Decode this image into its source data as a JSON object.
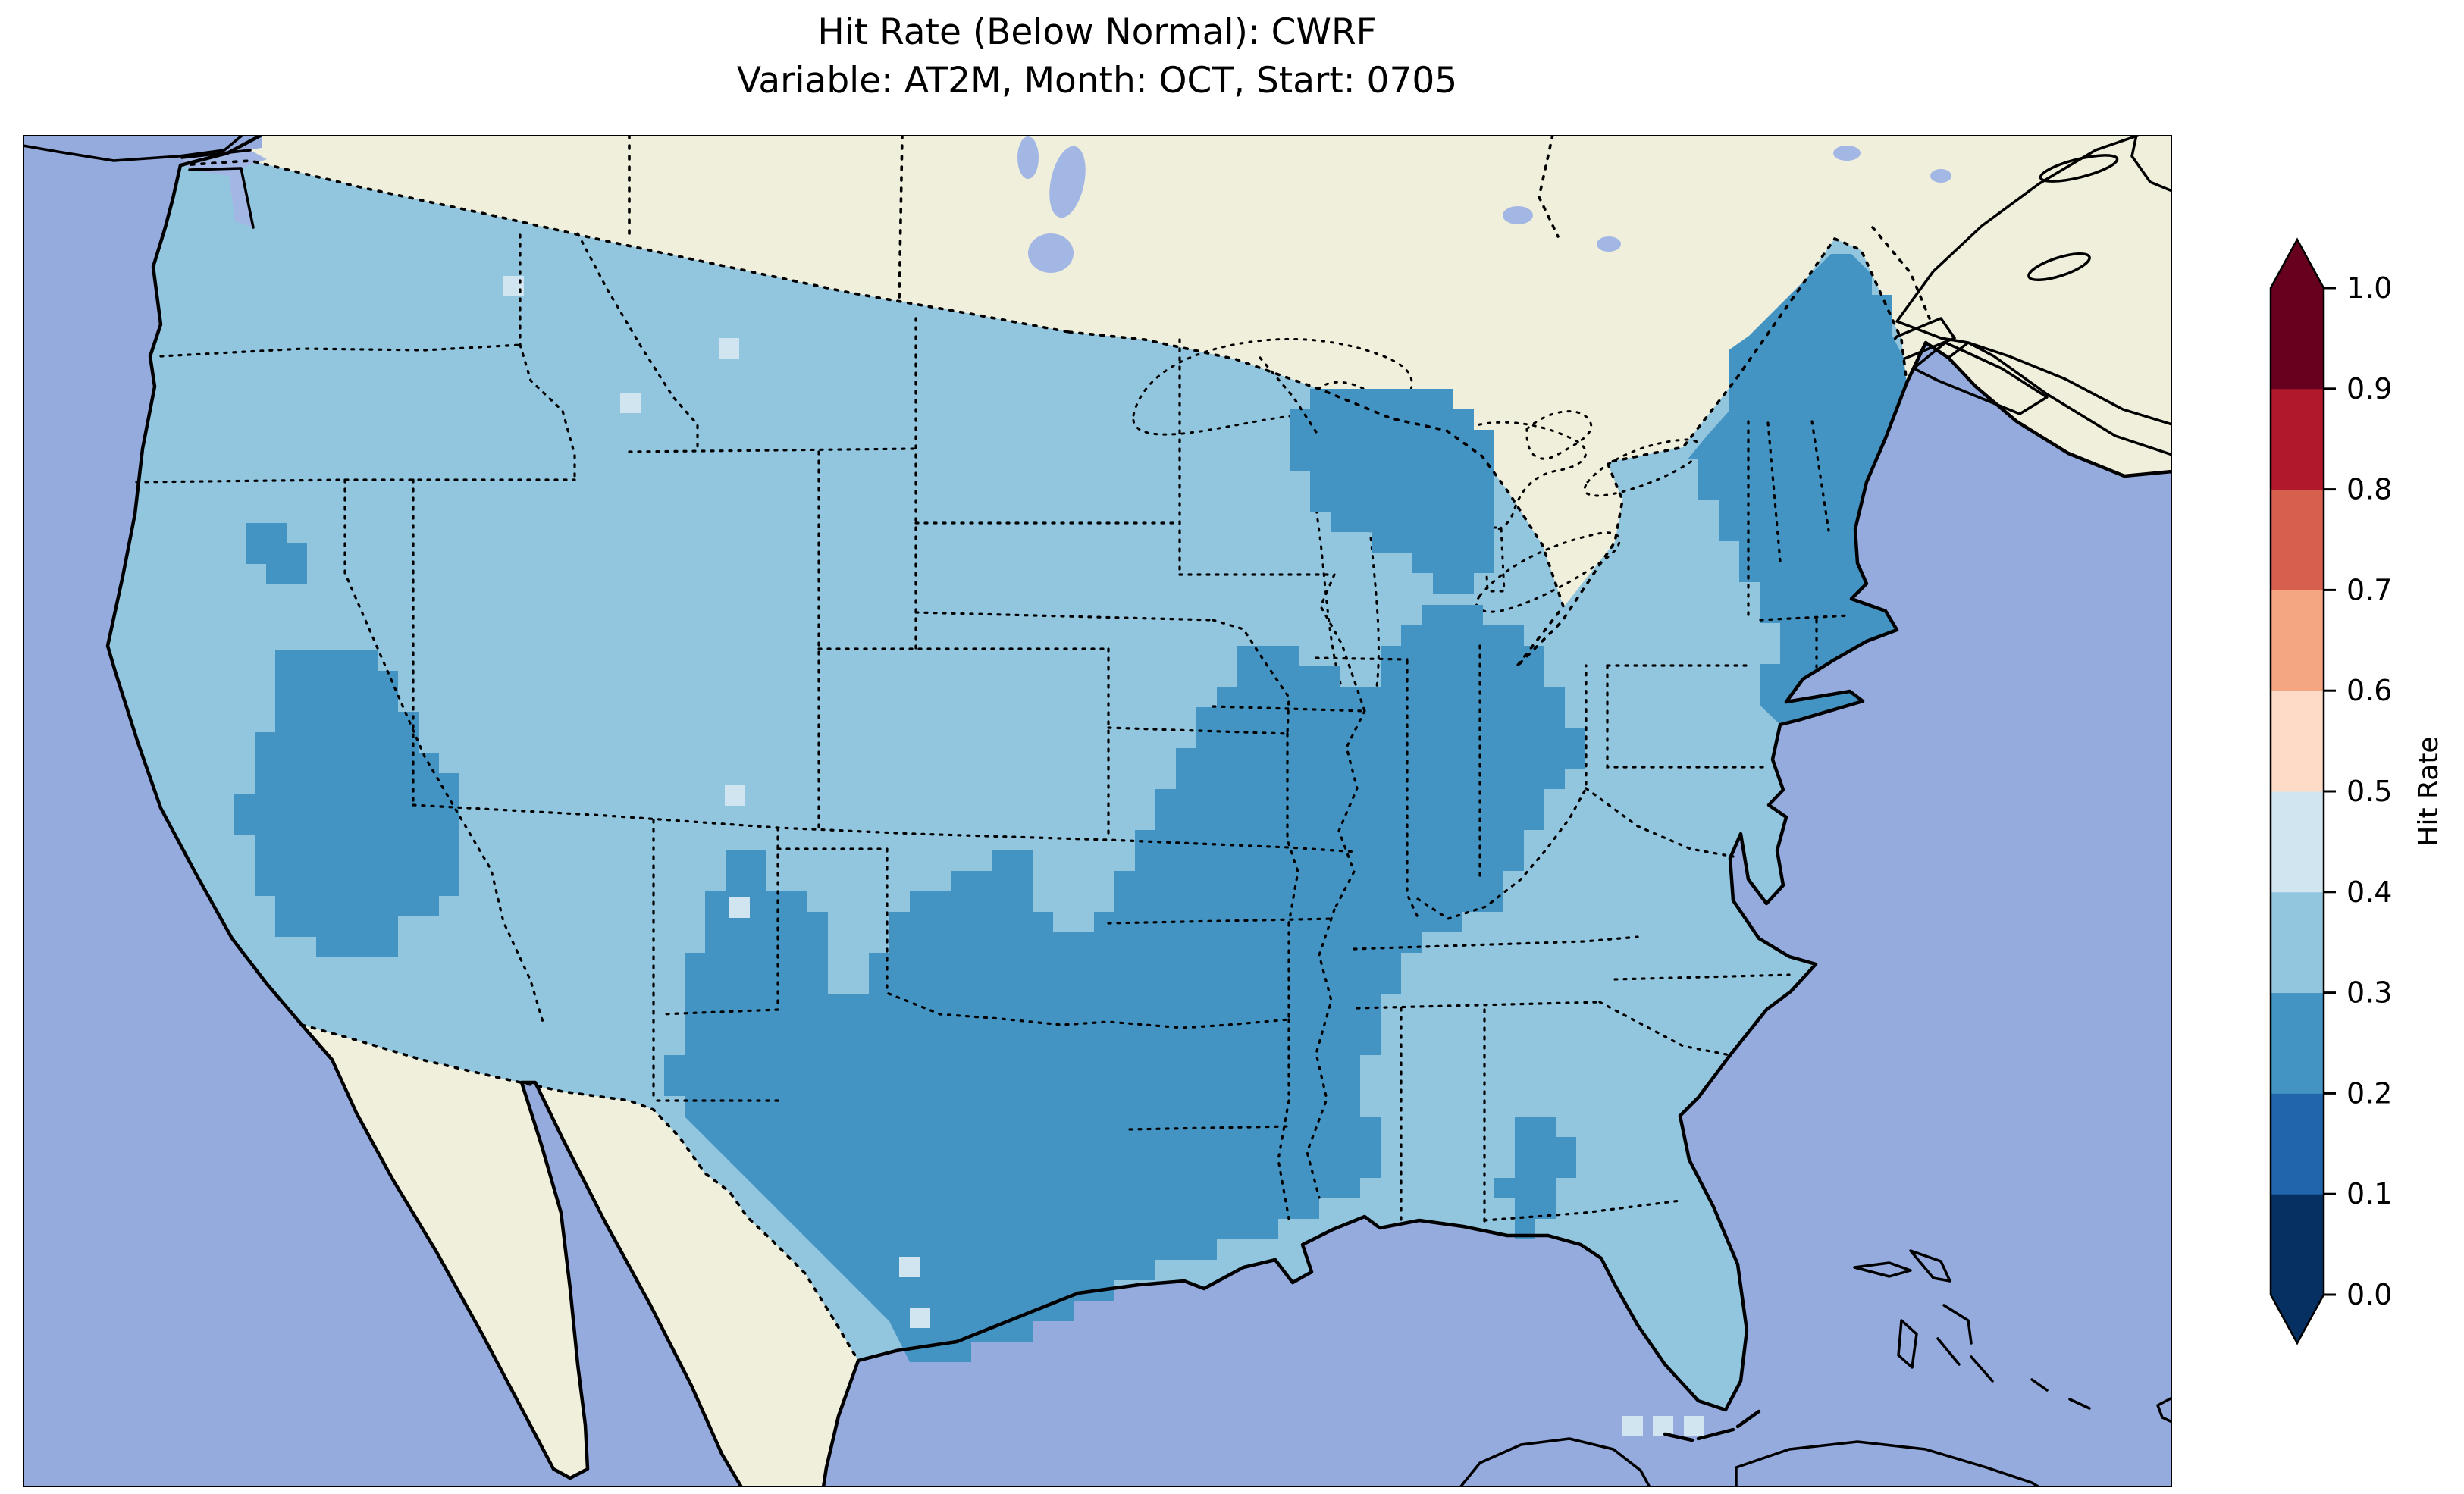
{
  "title": {
    "line1": "Hit Rate (Below Normal): CWRF",
    "line2": "Variable: AT2M, Month: OCT, Start: 0705"
  },
  "colorbar": {
    "label": "Hit Rate",
    "ticks": [
      "0.0",
      "0.1",
      "0.2",
      "0.3",
      "0.4",
      "0.5",
      "0.6",
      "0.7",
      "0.8",
      "0.9",
      "1.0"
    ],
    "extend": "both",
    "colors_low_to_high": [
      "#053061",
      "#2166ac",
      "#4393c3",
      "#92c5de",
      "#d1e5f0",
      "#fddbc7",
      "#f4a582",
      "#d6604d",
      "#b2182b",
      "#67001f"
    ],
    "colormap": "RdBu_r",
    "range": [
      0.0,
      1.0
    ],
    "bin_width": 0.1
  },
  "map": {
    "colors": {
      "ocean": "#95abde",
      "land": "#f0efdb",
      "lakes": "#a3b7e5",
      "bin_03_04": "#92c5de",
      "bin_02_03": "#4393c3",
      "bin_04_05": "#d1e5f0",
      "border": "#000000"
    }
  },
  "chart_data": {
    "type": "heatmap",
    "subtype": "geographic gridded choropleth (CONUS map, Lambert-conformal style, cartopy/matplotlib)",
    "title": "Hit Rate (Below Normal): CWRF",
    "subtitle": "Variable: AT2M, Month: OCT, Start: 0705",
    "model": "CWRF",
    "variable": "AT2M",
    "month": "OCT",
    "start": "0705",
    "colorbar": {
      "label": "Hit Rate",
      "ticks": [
        0.0,
        0.1,
        0.2,
        0.3,
        0.4,
        0.5,
        0.6,
        0.7,
        0.8,
        0.9,
        1.0
      ],
      "extend": "both",
      "bin_colors_low_to_high": [
        "#053061",
        "#2166ac",
        "#4393c3",
        "#92c5de",
        "#d1e5f0",
        "#fddbc7",
        "#f4a582",
        "#d6604d",
        "#b2182b",
        "#67001f"
      ]
    },
    "legend_position": "right",
    "grid": false,
    "values_by_region": [
      {
        "region": "Most of CONUS (background value)",
        "hit_rate_bin": "0.3–0.4",
        "color": "#92c5de"
      },
      {
        "region": "Texas (most), eastern Oklahoma, Arkansas, Louisiana, western Mississippi, eastern/southern Missouri, Illinois, Indiana, Ohio, Kentucky",
        "hit_rate_bin": "0.2–0.3",
        "color": "#4393c3"
      },
      {
        "region": "Great Basin blob (western/southern Nevada into SW Utah / NW Arizona) plus small NW Nevada cluster",
        "hit_rate_bin": "0.2–0.3",
        "color": "#4393c3"
      },
      {
        "region": "Northeast: eastern New York, all of New England (VT, NH, ME, MA, CT, RI), Long Island",
        "hit_rate_bin": "0.2–0.3",
        "color": "#4393c3"
      },
      {
        "region": "Upper Michigan / northern Lake Michigan / NW Lake Huron area",
        "hit_rate_bin": "0.2–0.3",
        "color": "#4393c3"
      },
      {
        "region": "Southwest Georgia / Florida panhandle border patch",
        "hit_rate_bin": "0.2–0.3",
        "color": "#4393c3"
      },
      {
        "region": "Scattered single cells (E Washington, W Montana, N North Dakota edge, central Utah, south Texas, near Florida Keys)",
        "hit_rate_bin": "0.4–0.5",
        "color": "#d1e5f0"
      },
      {
        "region": "Outside CONUS (Canada, Mexico, Bahamas, Cuba)",
        "hit_rate_bin": "no data (land)",
        "color": "#f0efdb"
      }
    ]
  }
}
